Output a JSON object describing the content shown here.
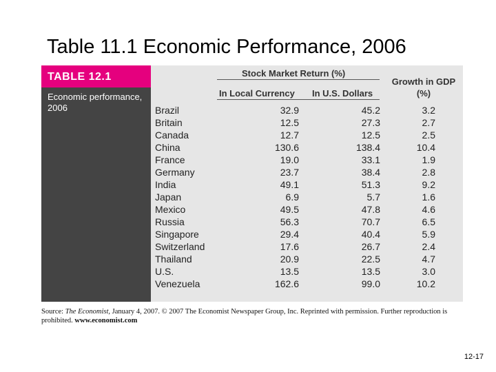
{
  "slide": {
    "title": "Table 11.1 Economic Performance, 2006",
    "page_number": "12-17"
  },
  "table": {
    "tag": "TABLE 12.1",
    "caption": "Economic performance, 2006",
    "header_group": "Stock Market Return (%)",
    "col_local": "In Local Currency",
    "col_usd": "In U.S. Dollars",
    "col_gdp": "Growth in GDP (%)",
    "rows": [
      {
        "country": "Brazil",
        "local": "32.9",
        "usd": "45.2",
        "gdp": "3.2"
      },
      {
        "country": "Britain",
        "local": "12.5",
        "usd": "27.3",
        "gdp": "2.7"
      },
      {
        "country": "Canada",
        "local": "12.7",
        "usd": "12.5",
        "gdp": "2.5"
      },
      {
        "country": "China",
        "local": "130.6",
        "usd": "138.4",
        "gdp": "10.4"
      },
      {
        "country": "France",
        "local": "19.0",
        "usd": "33.1",
        "gdp": "1.9"
      },
      {
        "country": "Germany",
        "local": "23.7",
        "usd": "38.4",
        "gdp": "2.8"
      },
      {
        "country": "India",
        "local": "49.1",
        "usd": "51.3",
        "gdp": "9.2"
      },
      {
        "country": "Japan",
        "local": "6.9",
        "usd": "5.7",
        "gdp": "1.6"
      },
      {
        "country": "Mexico",
        "local": "49.5",
        "usd": "47.8",
        "gdp": "4.6"
      },
      {
        "country": "Russia",
        "local": "56.3",
        "usd": "70.7",
        "gdp": "6.5"
      },
      {
        "country": "Singapore",
        "local": "29.4",
        "usd": "40.4",
        "gdp": "5.9"
      },
      {
        "country": "Switzerland",
        "local": "17.6",
        "usd": "26.7",
        "gdp": "2.4"
      },
      {
        "country": "Thailand",
        "local": "20.9",
        "usd": "22.5",
        "gdp": "4.7"
      },
      {
        "country": "U.S.",
        "local": "13.5",
        "usd": "13.5",
        "gdp": "3.0"
      },
      {
        "country": "Venezuela",
        "local": "162.6",
        "usd": "99.0",
        "gdp": "10.2"
      }
    ]
  },
  "source": {
    "prefix": "Source: ",
    "publication": "The Economist",
    "middle": ", January 4, 2007. © 2007 The Economist Newspaper Group, Inc. Reprinted with permission. Further reproduction is prohibited. ",
    "url": "www.economist.com"
  },
  "colors": {
    "tag": "#e5007e",
    "side_panel": "#444444",
    "table_bg": "#e6e6e6"
  }
}
